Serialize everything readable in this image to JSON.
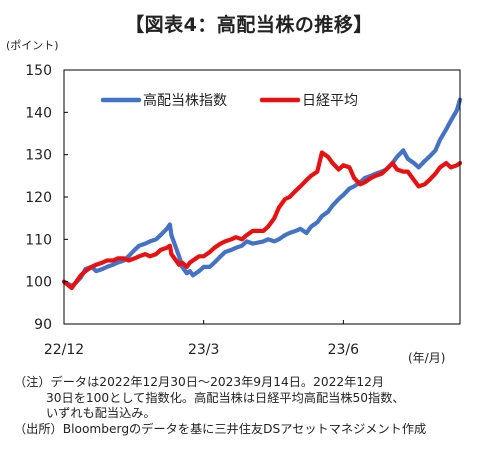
{
  "title": "【図表4：高配当株の推移】",
  "y_unit": "(ポイント)",
  "x_unit": "(年/月)",
  "notes": {
    "line1": "（注）データは2022年12月30日～2023年9月14日。2022年12月",
    "line2": "30日を100として指数化。高配当株は日経平均高配当株50指数、",
    "line3": "いずれも配当込み。",
    "line4": "（出所）Bloombergのデータを基に三井住友DSアセットマネジメント作成"
  },
  "colors": {
    "high_dividend": "#4472C4",
    "nikkei": "#E81010",
    "axis": "#000000"
  },
  "chart_data": {
    "type": "line",
    "xlabel": "",
    "ylabel": "",
    "xlim": [
      "2022-12-30",
      "2023-09-14"
    ],
    "ylim": [
      90,
      150
    ],
    "yticks": [
      90,
      100,
      110,
      120,
      130,
      140,
      150
    ],
    "xticks": [
      {
        "date": "2022-12-30",
        "label": "22/12"
      },
      {
        "date": "2023-03-31",
        "label": "23/3"
      },
      {
        "date": "2023-06-30",
        "label": "23/6"
      }
    ],
    "grid": false,
    "legend": "top-left",
    "series": [
      {
        "name": "高配当株指数",
        "color": "#4472C4",
        "points": [
          [
            "2022-12-30",
            100
          ],
          [
            "2023-01-04",
            99
          ],
          [
            "2023-01-06",
            99.5
          ],
          [
            "2023-01-10",
            101
          ],
          [
            "2023-01-13",
            103
          ],
          [
            "2023-01-17",
            103.5
          ],
          [
            "2023-01-20",
            102.5
          ],
          [
            "2023-01-24",
            103
          ],
          [
            "2023-01-27",
            103.5
          ],
          [
            "2023-01-31",
            104
          ],
          [
            "2023-02-03",
            104.5
          ],
          [
            "2023-02-07",
            105
          ],
          [
            "2023-02-10",
            106
          ],
          [
            "2023-02-14",
            107.5
          ],
          [
            "2023-02-17",
            108.5
          ],
          [
            "2023-02-21",
            109
          ],
          [
            "2023-02-24",
            109.5
          ],
          [
            "2023-02-28",
            110
          ],
          [
            "2023-03-03",
            111
          ],
          [
            "2023-03-07",
            112.5
          ],
          [
            "2023-03-09",
            113.5
          ],
          [
            "2023-03-10",
            111
          ],
          [
            "2023-03-13",
            108
          ],
          [
            "2023-03-15",
            106
          ],
          [
            "2023-03-17",
            103.5
          ],
          [
            "2023-03-20",
            102
          ],
          [
            "2023-03-22",
            102.5
          ],
          [
            "2023-03-24",
            101.5
          ],
          [
            "2023-03-28",
            102.5
          ],
          [
            "2023-03-31",
            103.5
          ],
          [
            "2023-04-04",
            103.5
          ],
          [
            "2023-04-07",
            104.5
          ],
          [
            "2023-04-11",
            106
          ],
          [
            "2023-04-14",
            107
          ],
          [
            "2023-04-18",
            107.5
          ],
          [
            "2023-04-21",
            108
          ],
          [
            "2023-04-25",
            108.5
          ],
          [
            "2023-04-28",
            109.5
          ],
          [
            "2023-05-02",
            109
          ],
          [
            "2023-05-09",
            109.5
          ],
          [
            "2023-05-12",
            110
          ],
          [
            "2023-05-16",
            109.5
          ],
          [
            "2023-05-19",
            110
          ],
          [
            "2023-05-23",
            111
          ],
          [
            "2023-05-26",
            111.5
          ],
          [
            "2023-05-30",
            112
          ],
          [
            "2023-06-02",
            112.5
          ],
          [
            "2023-06-06",
            111.5
          ],
          [
            "2023-06-09",
            113
          ],
          [
            "2023-06-13",
            114
          ],
          [
            "2023-06-16",
            115.5
          ],
          [
            "2023-06-20",
            116.5
          ],
          [
            "2023-06-23",
            118
          ],
          [
            "2023-06-27",
            119.5
          ],
          [
            "2023-06-30",
            120.5
          ],
          [
            "2023-07-04",
            122
          ],
          [
            "2023-07-07",
            122.5
          ],
          [
            "2023-07-11",
            123.5
          ],
          [
            "2023-07-14",
            124.5
          ],
          [
            "2023-07-18",
            125
          ],
          [
            "2023-07-21",
            125.5
          ],
          [
            "2023-07-25",
            126
          ],
          [
            "2023-07-28",
            126.5
          ],
          [
            "2023-08-01",
            128
          ],
          [
            "2023-08-04",
            129.5
          ],
          [
            "2023-08-08",
            131
          ],
          [
            "2023-08-11",
            129
          ],
          [
            "2023-08-15",
            128
          ],
          [
            "2023-08-18",
            127
          ],
          [
            "2023-08-22",
            128.5
          ],
          [
            "2023-08-25",
            129.5
          ],
          [
            "2023-08-29",
            131
          ],
          [
            "2023-09-01",
            133.5
          ],
          [
            "2023-09-05",
            136
          ],
          [
            "2023-09-08",
            138
          ],
          [
            "2023-09-12",
            140.5
          ],
          [
            "2023-09-14",
            143
          ]
        ]
      },
      {
        "name": "日経平均",
        "color": "#E81010",
        "points": [
          [
            "2022-12-30",
            100
          ],
          [
            "2023-01-04",
            98.5
          ],
          [
            "2023-01-06",
            99.5
          ],
          [
            "2023-01-10",
            101.5
          ],
          [
            "2023-01-13",
            102.5
          ],
          [
            "2023-01-17",
            103.5
          ],
          [
            "2023-01-20",
            104
          ],
          [
            "2023-01-24",
            104.5
          ],
          [
            "2023-01-27",
            105
          ],
          [
            "2023-01-31",
            105
          ],
          [
            "2023-02-03",
            105.5
          ],
          [
            "2023-02-07",
            105.5
          ],
          [
            "2023-02-10",
            105
          ],
          [
            "2023-02-14",
            105.5
          ],
          [
            "2023-02-17",
            106
          ],
          [
            "2023-02-21",
            106.5
          ],
          [
            "2023-02-24",
            106
          ],
          [
            "2023-02-28",
            106.5
          ],
          [
            "2023-03-03",
            107.5
          ],
          [
            "2023-03-07",
            108
          ],
          [
            "2023-03-09",
            108.5
          ],
          [
            "2023-03-10",
            106.5
          ],
          [
            "2023-03-13",
            105
          ],
          [
            "2023-03-15",
            104
          ],
          [
            "2023-03-17",
            104.5
          ],
          [
            "2023-03-20",
            103.5
          ],
          [
            "2023-03-22",
            104.5
          ],
          [
            "2023-03-24",
            105
          ],
          [
            "2023-03-28",
            106
          ],
          [
            "2023-03-31",
            106
          ],
          [
            "2023-04-04",
            107
          ],
          [
            "2023-04-07",
            108
          ],
          [
            "2023-04-11",
            109
          ],
          [
            "2023-04-14",
            109.5
          ],
          [
            "2023-04-18",
            110
          ],
          [
            "2023-04-21",
            110.5
          ],
          [
            "2023-04-25",
            110
          ],
          [
            "2023-04-28",
            111
          ],
          [
            "2023-05-02",
            112
          ],
          [
            "2023-05-09",
            112
          ],
          [
            "2023-05-12",
            113
          ],
          [
            "2023-05-16",
            115
          ],
          [
            "2023-05-19",
            117.5
          ],
          [
            "2023-05-23",
            119.5
          ],
          [
            "2023-05-26",
            120
          ],
          [
            "2023-05-30",
            121.5
          ],
          [
            "2023-06-02",
            122.5
          ],
          [
            "2023-06-06",
            124
          ],
          [
            "2023-06-09",
            125
          ],
          [
            "2023-06-13",
            126
          ],
          [
            "2023-06-16",
            130.5
          ],
          [
            "2023-06-20",
            129.5
          ],
          [
            "2023-06-23",
            128
          ],
          [
            "2023-06-27",
            126.5
          ],
          [
            "2023-06-30",
            127.5
          ],
          [
            "2023-07-04",
            127
          ],
          [
            "2023-07-07",
            124.5
          ],
          [
            "2023-07-11",
            123
          ],
          [
            "2023-07-14",
            123.5
          ],
          [
            "2023-07-18",
            124.5
          ],
          [
            "2023-07-21",
            125
          ],
          [
            "2023-07-25",
            125.5
          ],
          [
            "2023-07-28",
            126.5
          ],
          [
            "2023-08-01",
            128
          ],
          [
            "2023-08-04",
            126.5
          ],
          [
            "2023-08-08",
            126
          ],
          [
            "2023-08-11",
            126
          ],
          [
            "2023-08-15",
            124
          ],
          [
            "2023-08-18",
            122.5
          ],
          [
            "2023-08-22",
            123
          ],
          [
            "2023-08-25",
            124
          ],
          [
            "2023-08-29",
            125.5
          ],
          [
            "2023-09-01",
            127
          ],
          [
            "2023-09-05",
            128
          ],
          [
            "2023-09-08",
            127
          ],
          [
            "2023-09-12",
            127.5
          ],
          [
            "2023-09-14",
            128
          ]
        ]
      }
    ]
  }
}
